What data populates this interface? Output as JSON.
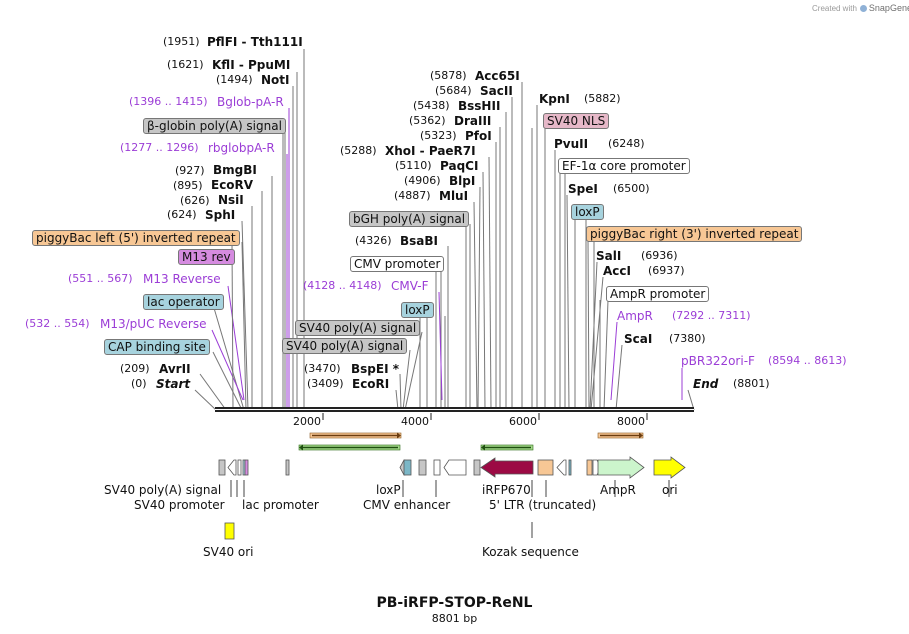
{
  "credit": {
    "prefix": "Created with",
    "brand": "SnapGene"
  },
  "title": "PB-iRFP-STOP-ReNL",
  "subtitle": "8801 bp",
  "axis_ticks": [
    "2000",
    "4000",
    "6000",
    "8000"
  ],
  "sites": {
    "pflfi_pos": "(1951)",
    "pflfi": "PflFI  - Tth111I",
    "kfli_pos": "(1621)",
    "kfli": "KflI  - PpuMI",
    "noti_pos": "(1494)",
    "noti": "NotI",
    "bglob_pos": "(1396 .. 1415)",
    "bglob": "Bglob-pA-R",
    "bglobin": "β-globin poly(A) signal",
    "rbglob_pos": "(1277 .. 1296)",
    "rbglob": "rbglobpA-R",
    "bmgbi_pos": "(927)",
    "bmgbi": "BmgBI",
    "ecorv_pos": "(895)",
    "ecorv": "EcoRV",
    "nsii_pos": "(626)",
    "nsii": "NsiI",
    "sphi_pos": "(624)",
    "sphi": "SphI",
    "pbleft": "piggyBac left (5') inverted repeat",
    "m13rev": "M13 rev",
    "m13r_pos": "(551 .. 567)",
    "m13r": "M13 Reverse",
    "lacop": "lac operator",
    "m13puc_pos": "(532 .. 554)",
    "m13puc": "M13/pUC Reverse",
    "cap": "CAP binding site",
    "avrii_pos": "(209)",
    "avrii": "AvrII",
    "start_pos": "(0)",
    "start": "Start",
    "acc65i_pos": "(5878)",
    "acc65i": "Acc65I",
    "sacii_pos": "(5684)",
    "sacii": "SacII",
    "bsshii_pos": "(5438)",
    "bsshii": "BssHII",
    "draiii_pos": "(5362)",
    "draiii": "DraIII",
    "pfoi_pos": "(5323)",
    "pfoi": "PfoI",
    "xhoi_pos": "(5288)",
    "xhoi": "XhoI  - PaeR7I",
    "paqci_pos": "(5110)",
    "paqci": "PaqCI",
    "blpi_pos": "(4906)",
    "blpi": "BlpI",
    "mlui_pos": "(4887)",
    "mlui": "MluI",
    "bgh": "bGH poly(A) signal",
    "bsabi_pos": "(4326)",
    "bsabi": "BsaBI",
    "cmvprom": "CMV promoter",
    "cmvf_pos": "(4128 .. 4148)",
    "cmvf": "CMV-F",
    "loxp1": "loxP",
    "sv40pa1": "SV40 poly(A) signal",
    "sv40pa2": "SV40 poly(A) signal",
    "bspei_pos": "(3470)",
    "bspei": "BspEI *",
    "ecori_pos": "(3409)",
    "ecori": "EcoRI",
    "kpni": "KpnI",
    "kpni_pos": "(5882)",
    "sv40nls": "SV40 NLS",
    "pvuii": "PvuII",
    "pvuii_pos": "(6248)",
    "ef1a": "EF-1α core promoter",
    "spei": "SpeI",
    "spei_pos": "(6500)",
    "loxp2": "loxP",
    "pbright": "piggyBac right (3') inverted repeat",
    "sali": "SalI",
    "sali_pos": "(6936)",
    "acci": "AccI",
    "acci_pos": "(6937)",
    "ampprom": "AmpR promoter",
    "ampr_primer": "AmpR",
    "ampr_primer_pos": "(7292 .. 7311)",
    "scai": "ScaI",
    "scai_pos": "(7380)",
    "pbr_primer": "pBR322ori-F",
    "pbr_primer_pos": "(8594 .. 8613)",
    "end": "End",
    "end_pos": "(8801)"
  },
  "features": {
    "sv40pa": "SV40 poly(A) signal",
    "sv40prom": "SV40 promoter",
    "lacprom": "lac promoter",
    "sv40ori": "SV40 ori",
    "loxp": "loxP",
    "cmvenh": "CMV enhancer",
    "irfp": "iRFP670",
    "ltr": "5' LTR (truncated)",
    "kozak": "Kozak sequence",
    "ampr": "AmpR",
    "ori": "ori"
  },
  "colors": {
    "irfp": "#9c0a44",
    "ampr": "#ccf5cc",
    "ori": "#ffff00",
    "sv40ori": "#ffff00",
    "orf_orange": "#f7c795",
    "orf_green": "#63a33a"
  }
}
